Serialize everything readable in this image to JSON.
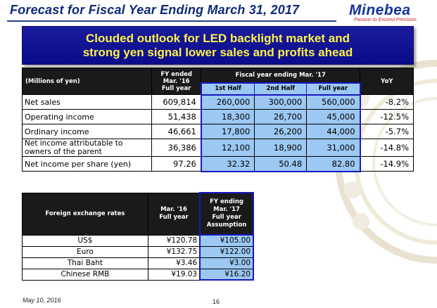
{
  "title": "Forecast for Fiscal Year Ending March 31, 2017",
  "logo": {
    "word": "Minebea",
    "tagline": "Passion to Exceed Precision"
  },
  "banner": {
    "line1": "Clouded outlook for LED backlight market and",
    "line2": "strong yen signal lower sales and profits ahead"
  },
  "main_table": {
    "unit_label": "(Millions of yen)",
    "prev_header": "FY ended\nMar. '16\nFull year",
    "forecast_header": "Fiscal year ending Mar. '17",
    "sub_headers": [
      "1st Half",
      "2nd Half",
      "Full year"
    ],
    "yoy_header": "YoY",
    "rows": [
      {
        "label": "Net sales",
        "prev": "609,814",
        "h1": "260,000",
        "h2": "300,000",
        "full": "560,000",
        "yoy": "-8.2%"
      },
      {
        "label": "Operating income",
        "prev": "51,438",
        "h1": "18,300",
        "h2": "26,700",
        "full": "45,000",
        "yoy": "-12.5%"
      },
      {
        "label": "Ordinary income",
        "prev": "46,661",
        "h1": "17,800",
        "h2": "26,200",
        "full": "44,000",
        "yoy": "-5.7%"
      },
      {
        "label": "Net income attributable to\nowners of the parent",
        "prev": "36,386",
        "h1": "12,100",
        "h2": "18,900",
        "full": "31,000",
        "yoy": "-14.8%"
      },
      {
        "label": "Net income per share (yen)",
        "prev": "97.26",
        "h1": "32.32",
        "h2": "50.48",
        "full": "82.80",
        "yoy": "-14.9%"
      }
    ]
  },
  "fx_table": {
    "label_header": "Foreign exchange rates",
    "prev_header": "Mar. '16\nFull  year",
    "assumption_header": "FY ending\nMar. '17\nFull year\nAssumption",
    "rows": [
      {
        "currency": "US$",
        "prev": "¥120.78",
        "assumption": "¥105.00"
      },
      {
        "currency": "Euro",
        "prev": "¥132.75",
        "assumption": "¥122.00"
      },
      {
        "currency": "Thai Baht",
        "prev": "¥3.46",
        "assumption": "¥3.00"
      },
      {
        "currency": "Chinese RMB",
        "prev": "¥19.03",
        "assumption": "¥16.20"
      }
    ]
  },
  "footer": {
    "date": "May 10, 2016",
    "page": "16"
  },
  "colors": {
    "title": "#0f2a78",
    "banner_bg": "#0c0c8a",
    "banner_text": "#fdf24a",
    "highlight": "#9cc8f2",
    "highlight_border": "#1818c0"
  }
}
